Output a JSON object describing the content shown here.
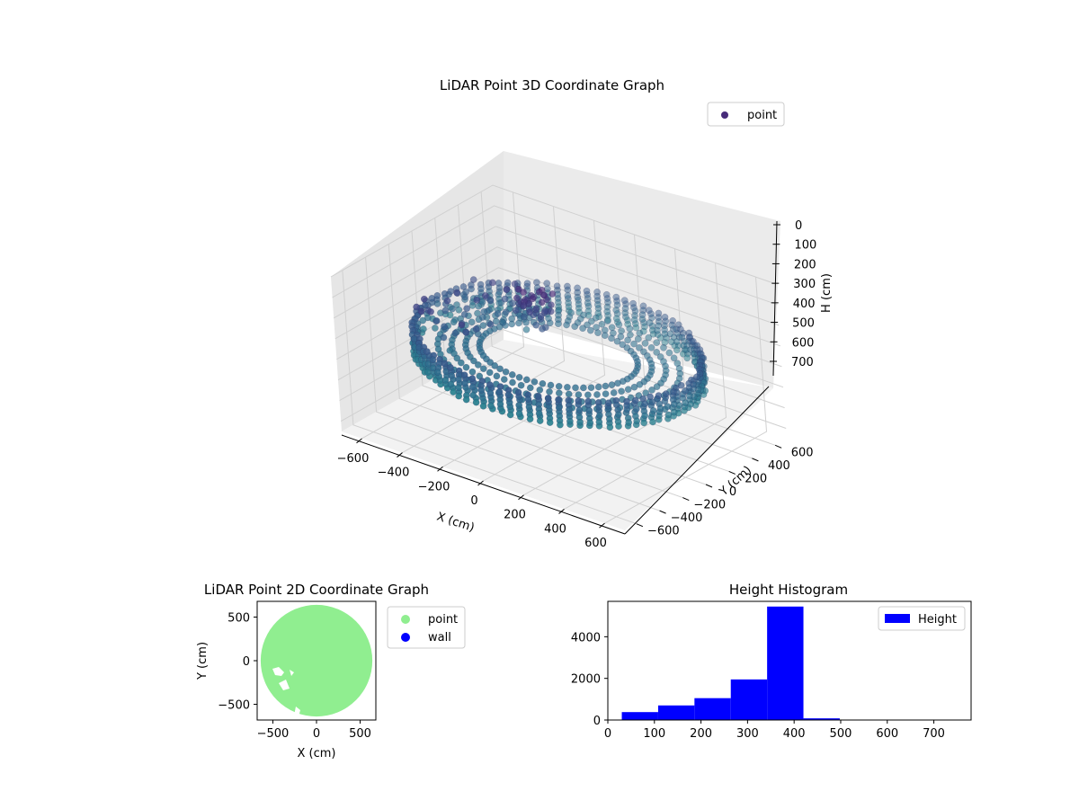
{
  "chart_data": [
    {
      "type": "scatter",
      "projection": "3d",
      "title": "LiDAR Point 3D Coordinate Graph",
      "xlabel": "X (cm)",
      "ylabel": "Y (cm)",
      "zlabel": "H (cm)",
      "xticks": [
        -600,
        -400,
        -200,
        0,
        200,
        400,
        600
      ],
      "yticks": [
        -600,
        -400,
        -200,
        0,
        200,
        400,
        600
      ],
      "zticks": [
        0,
        100,
        200,
        300,
        400,
        500,
        600,
        700
      ],
      "xlim": [
        -700,
        700
      ],
      "ylim": [
        -700,
        700
      ],
      "zlim": [
        0,
        750
      ],
      "z_inverted": true,
      "grid": true,
      "colormap": "viridis",
      "legend": {
        "entries": [
          "point"
        ],
        "position": "top-right",
        "marker_color": "#472c7a"
      },
      "series": [
        {
          "name": "point",
          "description_of_shape": "ring-shaped wall of points, radius about 600 cm, heights 300-420 cm; plus cluster near x -200, y 100 and scattered points on the left side",
          "wall_radius": 620,
          "wall_height_range": [
            300,
            420
          ]
        }
      ]
    },
    {
      "type": "scatter",
      "title": "LiDAR Point 2D Coordinate Graph",
      "xlabel": "X (cm)",
      "ylabel": "Y (cm)",
      "xticks": [
        -500,
        0,
        500
      ],
      "yticks": [
        -500,
        0,
        500
      ],
      "xlim": [
        -680,
        680
      ],
      "ylim": [
        -680,
        680
      ],
      "legend": {
        "position": "outside-right",
        "entries": [
          {
            "label": "point",
            "color": "#90ee90"
          },
          {
            "label": "wall",
            "color": "#0000ff"
          }
        ]
      },
      "point_color": "#90ee90",
      "filled_disk_radius": 640
    },
    {
      "type": "bar",
      "histogram": true,
      "title": "Height Histogram",
      "xlabel": "",
      "ylabel": "",
      "xticks": [
        0,
        100,
        200,
        300,
        400,
        500,
        600,
        700
      ],
      "yticks": [
        0,
        2000,
        4000
      ],
      "xlim": [
        0,
        780
      ],
      "ylim": [
        0,
        5700
      ],
      "bar_color": "#0000ff",
      "legend": {
        "position": "top-right",
        "entries": [
          "Height"
        ]
      },
      "bins": [
        {
          "x0": 30,
          "x1": 108,
          "value": 380
        },
        {
          "x0": 108,
          "x1": 186,
          "value": 700
        },
        {
          "x0": 186,
          "x1": 264,
          "value": 1050
        },
        {
          "x0": 264,
          "x1": 342,
          "value": 1950
        },
        {
          "x0": 342,
          "x1": 420,
          "value": 5450
        },
        {
          "x0": 420,
          "x1": 498,
          "value": 80
        },
        {
          "x0": 498,
          "x1": 576,
          "value": 20
        },
        {
          "x0": 576,
          "x1": 654,
          "value": 10
        },
        {
          "x0": 654,
          "x1": 732,
          "value": 10
        }
      ]
    }
  ]
}
